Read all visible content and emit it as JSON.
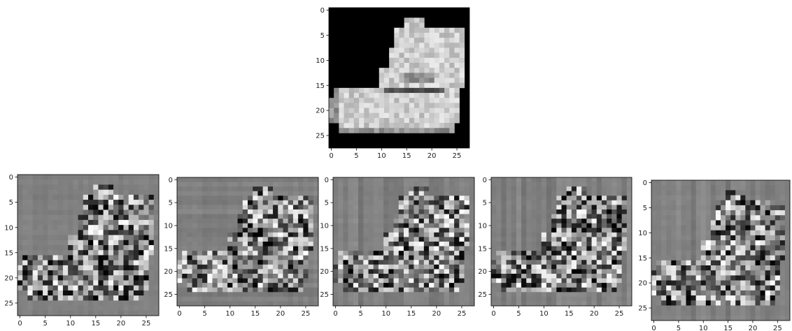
{
  "figure": {
    "description_panels": 6
  },
  "chart_data": [
    {
      "type": "heatmap",
      "role": "original-image",
      "title": "",
      "xlabel": "",
      "ylabel": "",
      "colormap": "gray",
      "grid": false,
      "size": [
        28,
        28
      ],
      "xlim": [
        -0.5,
        27.5
      ],
      "ylim": [
        27.5,
        -0.5
      ],
      "xticks": [
        "0",
        "5",
        "10",
        "15",
        "20",
        "25"
      ],
      "yticks": [
        "0",
        "5",
        "10",
        "15",
        "20",
        "25"
      ],
      "subject": "ankle boot"
    },
    {
      "type": "heatmap",
      "role": "feature-map-1",
      "title": "",
      "xlabel": "",
      "ylabel": "",
      "colormap": "gray",
      "grid": false,
      "size": [
        28,
        28
      ],
      "xlim": [
        -0.5,
        27.5
      ],
      "ylim": [
        27.5,
        -0.5
      ],
      "xticks": [
        "0",
        "5",
        "10",
        "15",
        "20",
        "25"
      ],
      "yticks": [
        "0",
        "5",
        "10",
        "15",
        "20",
        "25"
      ]
    },
    {
      "type": "heatmap",
      "role": "feature-map-2",
      "title": "",
      "xlabel": "",
      "ylabel": "",
      "colormap": "gray",
      "grid": false,
      "size": [
        28,
        28
      ],
      "xlim": [
        -0.5,
        27.5
      ],
      "ylim": [
        27.5,
        -0.5
      ],
      "xticks": [
        "0",
        "5",
        "10",
        "15",
        "20",
        "25"
      ],
      "yticks": [
        "0",
        "5",
        "10",
        "15",
        "20",
        "25"
      ]
    },
    {
      "type": "heatmap",
      "role": "feature-map-3",
      "title": "",
      "xlabel": "",
      "ylabel": "",
      "colormap": "gray",
      "grid": false,
      "size": [
        28,
        28
      ],
      "xlim": [
        -0.5,
        27.5
      ],
      "ylim": [
        27.5,
        -0.5
      ],
      "xticks": [
        "0",
        "5",
        "10",
        "15",
        "20",
        "25"
      ],
      "yticks": [
        "0",
        "5",
        "10",
        "15",
        "20",
        "25"
      ]
    },
    {
      "type": "heatmap",
      "role": "feature-map-4",
      "title": "",
      "xlabel": "",
      "ylabel": "",
      "colormap": "gray",
      "grid": false,
      "size": [
        28,
        28
      ],
      "xlim": [
        -0.5,
        27.5
      ],
      "ylim": [
        27.5,
        -0.5
      ],
      "xticks": [
        "0",
        "5",
        "10",
        "15",
        "20",
        "25"
      ],
      "yticks": [
        "0",
        "5",
        "10",
        "15",
        "20",
        "25"
      ]
    },
    {
      "type": "heatmap",
      "role": "feature-map-5",
      "title": "",
      "xlabel": "",
      "ylabel": "",
      "colormap": "gray",
      "grid": false,
      "size": [
        28,
        28
      ],
      "xlim": [
        -0.5,
        27.5
      ],
      "ylim": [
        27.5,
        -0.5
      ],
      "xticks": [
        "0",
        "5",
        "10",
        "15",
        "20",
        "25"
      ],
      "yticks": [
        "0",
        "5",
        "10",
        "15",
        "20",
        "25"
      ]
    }
  ]
}
